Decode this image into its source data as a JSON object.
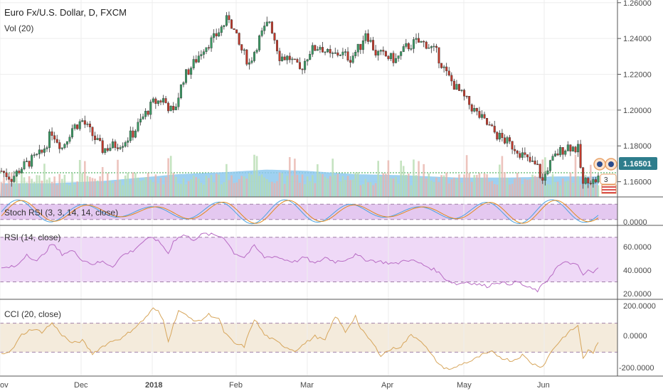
{
  "header": {
    "title": "Euro Fx/U.S. Dollar, D, FXCM",
    "volume_label": "Vol (20)"
  },
  "price_tag": {
    "value": "1.16501",
    "color": "#2e7d8c"
  },
  "colors": {
    "up": "#3a9a64",
    "down": "#c0392b",
    "vol_up": "#b7dcb0",
    "vol_down": "#e8b4ad",
    "vol_ma": "#8ec9ee",
    "stoch_k": "#4aa3df",
    "stoch_d": "#e08a1e",
    "stoch_band": "#e4c8f0",
    "rsi_line": "#b86cc4",
    "rsi_band": "#efd9f7",
    "cci_line": "#d7a65c",
    "cci_band": "#f4ebdc",
    "ref_line": "#2ea043"
  },
  "panes": {
    "stoch": {
      "label": "Stoch RSI (3, 3, 14, 14, close)",
      "tick": "0.0000"
    },
    "rsi": {
      "label": "RSI (14, close)",
      "ticks": [
        "60.0000",
        "40.0000",
        "20.0000"
      ]
    },
    "cci": {
      "label": "CCI (20, close)",
      "ticks": [
        "200.0000",
        "0.0000",
        "-200.0000"
      ]
    }
  },
  "icons": [
    "event-badge-icon",
    "event-badge-icon",
    "us-flag-icon"
  ],
  "event_count": "3",
  "x_axis": {
    "labels": [
      "ov",
      "Dec",
      "2018",
      "Feb",
      "Mar",
      "Apr",
      "May",
      "Jun"
    ]
  },
  "chart_data": {
    "type": "candlestick",
    "symbol": "Euro Fx/U.S. Dollar, D, FXCM",
    "y_ticks": [
      "1.26000",
      "1.24000",
      "1.22000",
      "1.20000",
      "1.18000",
      "1.16000"
    ],
    "ylim": [
      1.1515,
      1.2615
    ],
    "reference_price": 1.16501,
    "anchors": [
      [
        0,
        1.166
      ],
      [
        4,
        1.162
      ],
      [
        8,
        1.168
      ],
      [
        12,
        1.172
      ],
      [
        16,
        1.176
      ],
      [
        20,
        1.188
      ],
      [
        24,
        1.179
      ],
      [
        28,
        1.19
      ],
      [
        32,
        1.194
      ],
      [
        36,
        1.186
      ],
      [
        40,
        1.178
      ],
      [
        44,
        1.18
      ],
      [
        48,
        1.182
      ],
      [
        52,
        1.187
      ],
      [
        56,
        1.196
      ],
      [
        60,
        1.204
      ],
      [
        64,
        1.206
      ],
      [
        68,
        1.198
      ],
      [
        72,
        1.218
      ],
      [
        76,
        1.226
      ],
      [
        80,
        1.235
      ],
      [
        84,
        1.24
      ],
      [
        88,
        1.248
      ],
      [
        90,
        1.252
      ],
      [
        94,
        1.236
      ],
      [
        98,
        1.226
      ],
      [
        102,
        1.24
      ],
      [
        106,
        1.25
      ],
      [
        110,
        1.23
      ],
      [
        114,
        1.229
      ],
      [
        118,
        1.222
      ],
      [
        122,
        1.233
      ],
      [
        126,
        1.236
      ],
      [
        130,
        1.23
      ],
      [
        134,
        1.232
      ],
      [
        138,
        1.229
      ],
      [
        142,
        1.236
      ],
      [
        144,
        1.244
      ],
      [
        148,
        1.232
      ],
      [
        152,
        1.23
      ],
      [
        156,
        1.228
      ],
      [
        160,
        1.235
      ],
      [
        164,
        1.238
      ],
      [
        168,
        1.237
      ],
      [
        172,
        1.232
      ],
      [
        176,
        1.22
      ],
      [
        180,
        1.212
      ],
      [
        184,
        1.205
      ],
      [
        188,
        1.198
      ],
      [
        192,
        1.192
      ],
      [
        196,
        1.186
      ],
      [
        200,
        1.182
      ],
      [
        204,
        1.178
      ],
      [
        208,
        1.172
      ],
      [
        212,
        1.168
      ],
      [
        214,
        1.16
      ],
      [
        216,
        1.168
      ],
      [
        220,
        1.176
      ],
      [
        224,
        1.18
      ],
      [
        228,
        1.178
      ],
      [
        230,
        1.158
      ],
      [
        232,
        1.162
      ],
      [
        234,
        1.16
      ],
      [
        236,
        1.162
      ]
    ],
    "volume": {
      "baseline": 5,
      "ma_anchors": [
        [
          0,
          6
        ],
        [
          20,
          6
        ],
        [
          40,
          7
        ],
        [
          60,
          9
        ],
        [
          70,
          10
        ],
        [
          90,
          11
        ],
        [
          105,
          12
        ],
        [
          120,
          11.5
        ],
        [
          140,
          10
        ],
        [
          160,
          9.5
        ],
        [
          180,
          8.5
        ],
        [
          200,
          8.5
        ],
        [
          220,
          9
        ],
        [
          236,
          9
        ]
      ]
    },
    "stoch_rsi": {
      "ylim": [
        0,
        100
      ],
      "bands": [
        20,
        80
      ],
      "pattern": "oscillating"
    },
    "rsi": {
      "ylim": [
        15,
        80
      ],
      "bands": [
        30,
        70
      ],
      "anchors": [
        [
          0,
          42
        ],
        [
          6,
          44
        ],
        [
          10,
          55
        ],
        [
          14,
          48
        ],
        [
          20,
          64
        ],
        [
          24,
          55
        ],
        [
          28,
          58
        ],
        [
          32,
          50
        ],
        [
          36,
          46
        ],
        [
          40,
          48
        ],
        [
          44,
          44
        ],
        [
          48,
          54
        ],
        [
          52,
          58
        ],
        [
          56,
          66
        ],
        [
          60,
          70
        ],
        [
          64,
          62
        ],
        [
          66,
          55
        ],
        [
          68,
          67
        ],
        [
          72,
          72
        ],
        [
          76,
          68
        ],
        [
          80,
          73
        ],
        [
          84,
          72
        ],
        [
          88,
          70
        ],
        [
          92,
          56
        ],
        [
          96,
          52
        ],
        [
          100,
          62
        ],
        [
          104,
          52
        ],
        [
          108,
          53
        ],
        [
          112,
          50
        ],
        [
          116,
          48
        ],
        [
          120,
          52
        ],
        [
          124,
          46
        ],
        [
          128,
          52
        ],
        [
          132,
          48
        ],
        [
          136,
          50
        ],
        [
          140,
          54
        ],
        [
          144,
          50
        ],
        [
          150,
          48
        ],
        [
          156,
          46
        ],
        [
          160,
          50
        ],
        [
          164,
          48
        ],
        [
          168,
          44
        ],
        [
          172,
          40
        ],
        [
          176,
          32
        ],
        [
          180,
          28
        ],
        [
          184,
          30
        ],
        [
          188,
          28
        ],
        [
          192,
          26
        ],
        [
          196,
          30
        ],
        [
          200,
          28
        ],
        [
          204,
          30
        ],
        [
          208,
          25
        ],
        [
          212,
          22
        ],
        [
          216,
          32
        ],
        [
          220,
          44
        ],
        [
          224,
          48
        ],
        [
          228,
          44
        ],
        [
          230,
          36
        ],
        [
          232,
          40
        ],
        [
          234,
          38
        ],
        [
          236,
          42
        ]
      ]
    },
    "cci": {
      "ylim": [
        -260,
        260
      ],
      "bands": [
        -100,
        100
      ],
      "anchors": [
        [
          0,
          -105
        ],
        [
          4,
          -90
        ],
        [
          8,
          20
        ],
        [
          12,
          60
        ],
        [
          16,
          40
        ],
        [
          20,
          100
        ],
        [
          24,
          20
        ],
        [
          28,
          -40
        ],
        [
          32,
          -20
        ],
        [
          36,
          -110
        ],
        [
          40,
          -60
        ],
        [
          44,
          -20
        ],
        [
          48,
          0
        ],
        [
          52,
          60
        ],
        [
          56,
          120
        ],
        [
          60,
          200
        ],
        [
          62,
          180
        ],
        [
          64,
          120
        ],
        [
          66,
          -20
        ],
        [
          70,
          190
        ],
        [
          74,
          140
        ],
        [
          78,
          110
        ],
        [
          82,
          160
        ],
        [
          86,
          130
        ],
        [
          88,
          40
        ],
        [
          92,
          -40
        ],
        [
          96,
          -60
        ],
        [
          100,
          130
        ],
        [
          104,
          20
        ],
        [
          108,
          -20
        ],
        [
          112,
          -60
        ],
        [
          116,
          -90
        ],
        [
          120,
          -40
        ],
        [
          124,
          10
        ],
        [
          128,
          -20
        ],
        [
          132,
          150
        ],
        [
          134,
          100
        ],
        [
          136,
          40
        ],
        [
          140,
          150
        ],
        [
          142,
          60
        ],
        [
          146,
          -20
        ],
        [
          150,
          -120
        ],
        [
          154,
          -80
        ],
        [
          158,
          -60
        ],
        [
          162,
          20
        ],
        [
          166,
          -20
        ],
        [
          170,
          -120
        ],
        [
          174,
          -200
        ],
        [
          178,
          -220
        ],
        [
          182,
          -180
        ],
        [
          186,
          -160
        ],
        [
          190,
          -120
        ],
        [
          194,
          -100
        ],
        [
          198,
          -140
        ],
        [
          202,
          -160
        ],
        [
          206,
          -120
        ],
        [
          210,
          -180
        ],
        [
          214,
          -200
        ],
        [
          218,
          -80
        ],
        [
          222,
          0
        ],
        [
          226,
          60
        ],
        [
          228,
          80
        ],
        [
          230,
          -140
        ],
        [
          232,
          -90
        ],
        [
          234,
          -100
        ],
        [
          236,
          -40
        ]
      ]
    }
  }
}
